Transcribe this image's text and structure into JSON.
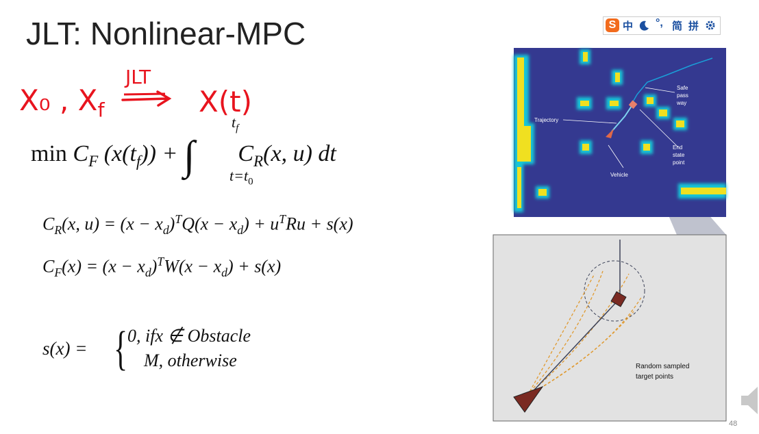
{
  "title": "JLT: Nonlinear-MPC",
  "handwriting": {
    "from": "X₀ , X",
    "from_sub": "f",
    "arrow_label": "JLT",
    "to": "X(t)"
  },
  "objective": {
    "min": "min",
    "cf": "C",
    "cf_sub": "F",
    "arg_open": "(x(t",
    "arg_sub": "f",
    "arg_close": ")) +",
    "integral": "∫",
    "upper": "t",
    "upper_sub": "f",
    "lower": "t=t",
    "lower_sub": "0",
    "cr": "C",
    "cr_sub": "R",
    "rest": "(x, u) dt"
  },
  "equations": [
    [
      "C",
      "R",
      "(x, u) = (x − x",
      "d",
      ")",
      "T",
      "Q(x − x",
      "d",
      ") + u",
      "T",
      "Ru + s(x)"
    ],
    [
      "C",
      "F",
      "(x) = (x − x",
      "d",
      ")",
      "T",
      "W(x − x",
      "d",
      ") + s(x)"
    ]
  ],
  "piecewise": {
    "lhs": "s(x) =",
    "cases": [
      "0, ifx ∉ Obstacle",
      "M, otherwise"
    ]
  },
  "figure": {
    "labels": {
      "safe": [
        "Safe",
        "pass",
        "way"
      ],
      "trajectory": "Trajectory",
      "end": [
        "End",
        "state",
        "point"
      ],
      "vehicle": "Vehicle"
    },
    "inset_caption": [
      "Random sampled",
      "target points"
    ]
  },
  "ime": [
    "中",
    "简",
    "拼"
  ],
  "page_number": "48"
}
